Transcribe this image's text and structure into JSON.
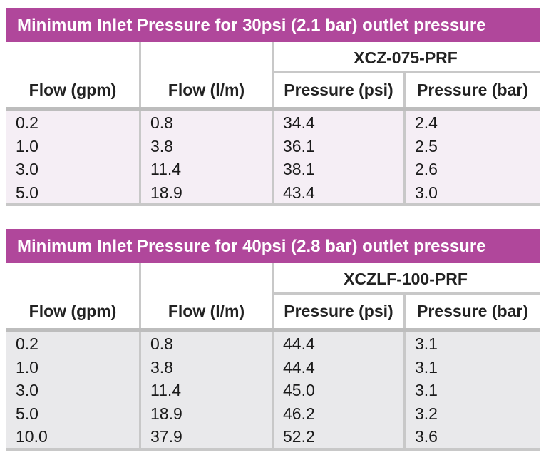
{
  "tables": [
    {
      "title": "Minimum Inlet Pressure for 30psi (2.1 bar) outlet pressure",
      "model": "XCZ-075-PRF",
      "headers": [
        "Flow (gpm)",
        "Flow (l/m)",
        "Pressure (psi)",
        "Pressure (bar)"
      ],
      "rows": [
        [
          "0.2",
          "0.8",
          "34.4",
          "2.4"
        ],
        [
          "1.0",
          "3.8",
          "36.1",
          "2.5"
        ],
        [
          "3.0",
          "11.4",
          "38.1",
          "2.6"
        ],
        [
          "5.0",
          "18.9",
          "43.4",
          "3.0"
        ]
      ]
    },
    {
      "title": "Minimum Inlet Pressure for 40psi (2.8 bar) outlet pressure",
      "model": "XCZLF-100-PRF",
      "headers": [
        "Flow (gpm)",
        "Flow (l/m)",
        "Pressure (psi)",
        "Pressure (bar)"
      ],
      "rows": [
        [
          "0.2",
          "0.8",
          "44.4",
          "3.1"
        ],
        [
          "1.0",
          "3.8",
          "44.4",
          "3.1"
        ],
        [
          "3.0",
          "11.4",
          "45.0",
          "3.1"
        ],
        [
          "5.0",
          "18.9",
          "46.2",
          "3.2"
        ],
        [
          "10.0",
          "37.9",
          "52.2",
          "3.6"
        ]
      ]
    }
  ],
  "colors": {
    "title_bar": "#b0479b",
    "table1_body": "#f5eef5",
    "table2_body": "#e9e9eb",
    "grid": "#c8c8c8"
  }
}
